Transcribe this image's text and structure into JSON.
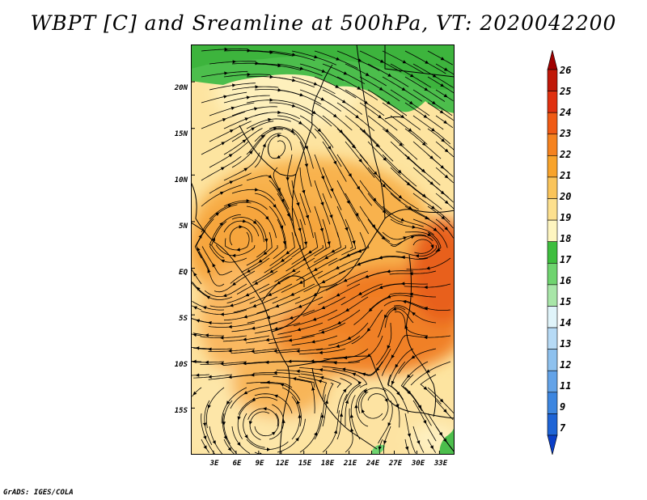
{
  "title": "WBPT [C] and Sreamline at 500hPa, VT: 2020042200",
  "credit": "GrADS: IGES/COLA",
  "map": {
    "y_labels": [
      "20N",
      "15N",
      "10N",
      "5N",
      "EQ",
      "5S",
      "10S",
      "15S"
    ],
    "x_labels": [
      "3E",
      "6E",
      "9E",
      "12E",
      "15E",
      "18E",
      "21E",
      "24E",
      "27E",
      "30E",
      "33E"
    ],
    "lat_range": [
      -20,
      24
    ],
    "lon_range": [
      0,
      35
    ],
    "streamline_color": "#000000",
    "border_color": "#000000"
  },
  "colorbar": {
    "labels": [
      "26",
      "25",
      "24",
      "23",
      "22",
      "21",
      "20",
      "19",
      "18",
      "17",
      "16",
      "15",
      "14",
      "13",
      "12",
      "11",
      "9",
      "7"
    ],
    "colors": [
      "#a00000",
      "#c01808",
      "#e03010",
      "#f05a14",
      "#f5821e",
      "#f8a32a",
      "#fac45a",
      "#fde08e",
      "#fef5c0",
      "#3ebe3e",
      "#6fd46f",
      "#a8e6a8",
      "#e0f4fa",
      "#b6daf5",
      "#8ec1ee",
      "#63a3e8",
      "#3d86e0",
      "#1e64d6",
      "#0a3fc8"
    ]
  }
}
